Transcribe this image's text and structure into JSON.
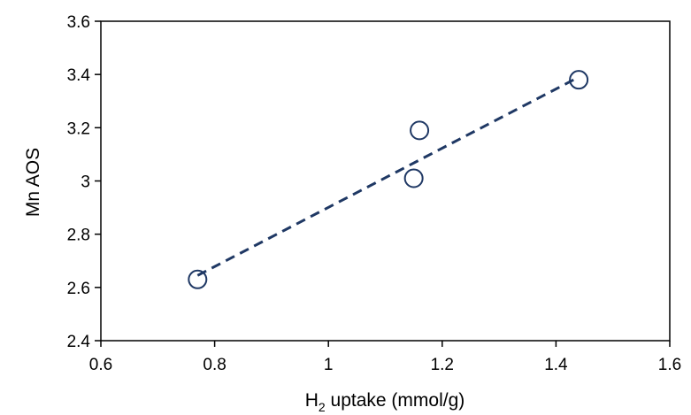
{
  "chart_data": {
    "type": "scatter",
    "xlabel": {
      "prefix": "H",
      "subscript": "2",
      "suffix": " uptake (mmol/g)"
    },
    "ylabel": "Mn AOS",
    "xlim": [
      0.6,
      1.6
    ],
    "ylim": [
      2.4,
      3.6
    ],
    "x_ticks": [
      "0.6",
      "0.8",
      "1",
      "1.2",
      "1.4",
      "1.6"
    ],
    "y_ticks": [
      "2.4",
      "2.6",
      "2.8",
      "3",
      "3.2",
      "3.4",
      "3.6"
    ],
    "grid": false,
    "legend": "none",
    "series": [
      {
        "x": [
          0.77,
          1.15,
          1.16,
          1.44
        ],
        "y": [
          2.63,
          3.01,
          3.19,
          3.38
        ],
        "marker": "open-circle",
        "color": "#1f3864"
      }
    ],
    "trendline": {
      "style": "dashed",
      "color": "#1f3864",
      "from": [
        0.77,
        2.645
      ],
      "to": [
        1.44,
        3.39
      ]
    }
  }
}
